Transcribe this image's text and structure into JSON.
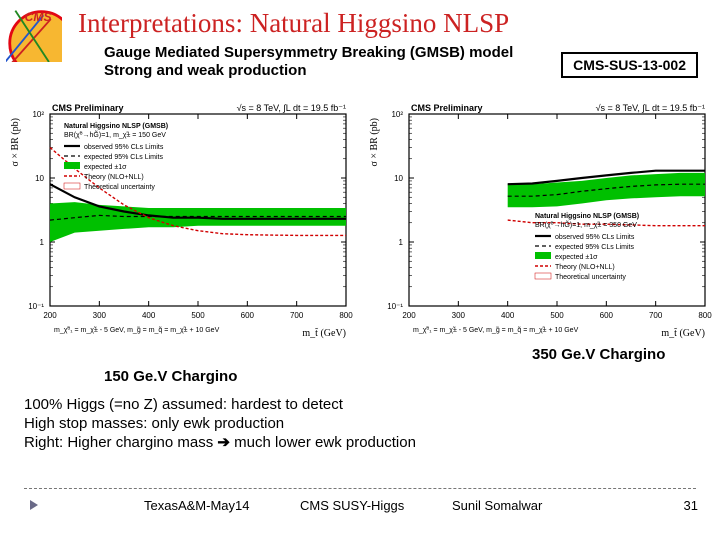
{
  "title": "Interpretations: Natural Higgsino NLSP",
  "subtitle_line1": "Gauge Mediated Supersymmetry Breaking (GMSB) model",
  "subtitle_line2": "Strong and weak production",
  "tag": "CMS-SUS-13-002",
  "chargino_left": "150 Ge.V Chargino",
  "chargino_right": "350 Ge.V Chargino",
  "body_line1": "100% Higgs (=no Z) assumed: hardest to detect",
  "body_line2": "High stop masses: only ewk production",
  "body_line3_a": "Right: Higher chargino mass ",
  "body_line3_arrow": "➔",
  "body_line3_b": " much lower ewk production",
  "footer": {
    "left": "TexasA&M-May14",
    "center": "CMS SUSY-Higgs",
    "right": "Sunil Somalwar",
    "page": "31"
  },
  "logo": {
    "bg": "#f7b731",
    "ring": "#e30613",
    "text": "CMS"
  },
  "chart_common": {
    "preliminary": "CMS Preliminary",
    "luminosity": "√s = 8 TeV, ∫L dt = 19.5 fb⁻¹",
    "ylabel": "σ × BR (pb)",
    "xlabel": "m_t̃ (GeV)",
    "x_ticks": [
      200,
      300,
      400,
      500,
      600,
      700,
      800
    ],
    "y_type": "log",
    "y_ticks": [
      0.1,
      1,
      10,
      100
    ],
    "y_tick_labels": [
      "10⁻¹",
      "1",
      "10",
      "10²"
    ],
    "colors": {
      "band": "#00c000",
      "obs": "#000000",
      "exp": "#000000",
      "theory": "#d00000",
      "grid": "#bbbbbb",
      "axis": "#000000",
      "text": "#000000",
      "bg": "#ffffff"
    },
    "line_widths": {
      "obs": 2.2,
      "exp": 1.2,
      "theory": 1.4,
      "band": 0,
      "axis": 1.2
    },
    "dash": {
      "exp": "4,3",
      "theory": "3,2"
    },
    "font_sizes": {
      "axis_label": 10,
      "tick": 8,
      "header": 9,
      "legend": 7
    }
  },
  "chart_left": {
    "legend_title": "Natural Higgsino NLSP (GMSB)",
    "legend_sub": "BR(χ̃⁰→hG̃)=1, m_χ̃± = 150 GeV",
    "legend_items": [
      "observed 95% CLs Limits",
      "expected 95% CLs Limits",
      "expected ±1σ",
      "Theory (NLO+NLL)",
      "Theoretical uncertainty"
    ],
    "mass_note": "m_χ̃⁰₁ = m_χ̃± - 5 GeV, m_g̃ = m_q̃ = m_χ̃± + 10 GeV",
    "band_lo": [
      1.0,
      1.4,
      1.5,
      1.6,
      1.7,
      1.7,
      1.8,
      1.8,
      1.8,
      1.8,
      1.8,
      1.8,
      1.8
    ],
    "band_hi": [
      4.0,
      4.2,
      3.8,
      3.6,
      3.4,
      3.4,
      3.4,
      3.4,
      3.4,
      3.4,
      3.4,
      3.4,
      3.4
    ],
    "expected": [
      2.2,
      2.4,
      2.6,
      2.5,
      2.5,
      2.5,
      2.5,
      2.5,
      2.5,
      2.5,
      2.5,
      2.5,
      2.5
    ],
    "observed": [
      8.0,
      5.0,
      3.6,
      3.0,
      2.6,
      2.4,
      2.4,
      2.3,
      2.3,
      2.3,
      2.3,
      2.3,
      2.3
    ],
    "theory": [
      30,
      14,
      7.0,
      3.8,
      2.4,
      1.8,
      1.5,
      1.35,
      1.3,
      1.28,
      1.27,
      1.27,
      1.27
    ],
    "x_points": [
      200,
      250,
      300,
      350,
      400,
      450,
      500,
      550,
      600,
      650,
      700,
      750,
      800
    ]
  },
  "chart_right": {
    "legend_title": "Natural Higgsino NLSP (GMSB)",
    "legend_sub": "BR(χ̃⁰→hG̃)=1, m_χ̃± = 350 GeV",
    "legend_items": [
      "observed 95% CLs Limits",
      "expected 95% CLs Limits",
      "expected ±1σ",
      "Theory (NLO+NLL)",
      "Theoretical uncertainty"
    ],
    "mass_note": "m_χ̃⁰₁ = m_χ̃± - 5 GeV, m_g̃ = m_q̃ = m_χ̃± + 10 GeV",
    "band_lo": [
      3.5,
      3.5,
      3.6,
      4.0,
      4.5,
      4.8,
      5.0,
      5.2,
      5.2
    ],
    "band_hi": [
      8.0,
      8.0,
      8.5,
      9.0,
      10,
      11,
      11.5,
      12,
      12
    ],
    "expected": [
      5.2,
      5.2,
      5.5,
      6.2,
      6.8,
      7.4,
      7.8,
      8.0,
      8.0
    ],
    "observed": [
      8.0,
      8.2,
      9.0,
      10,
      11,
      12,
      13,
      13,
      13
    ],
    "theory": [
      2.2,
      2.0,
      2.0,
      1.9,
      1.9,
      1.85,
      1.8,
      1.8,
      1.8
    ],
    "x_points": [
      400,
      450,
      500,
      550,
      600,
      650,
      700,
      750,
      800
    ]
  }
}
